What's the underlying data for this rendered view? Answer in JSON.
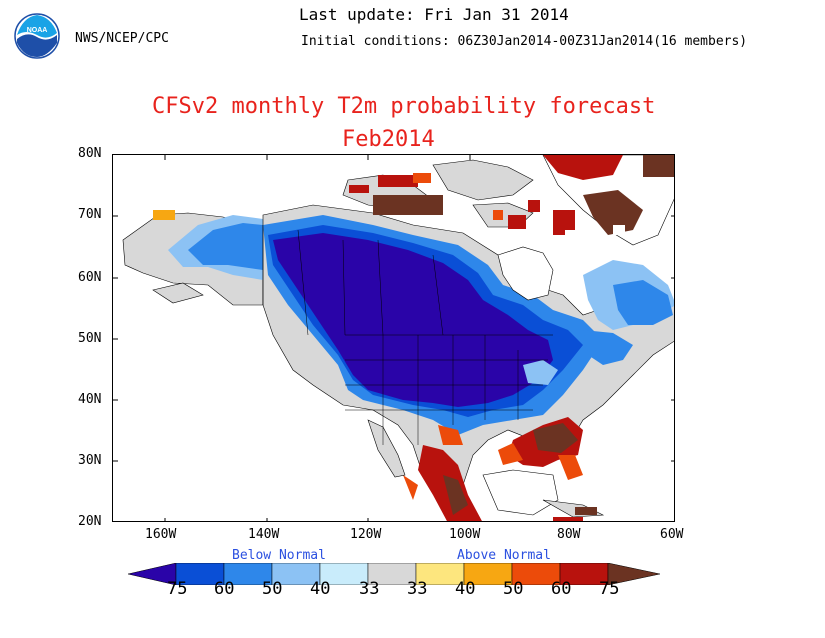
{
  "header": {
    "agency": "NWS/NCEP/CPC",
    "last_update": "Last update: Fri Jan 31 2014",
    "initial_conditions": "Initial conditions: 06Z30Jan2014-00Z31Jan2014(16 members)",
    "logo_text": "NOAA"
  },
  "title": {
    "line1": "CFSv2 monthly T2m probability forecast",
    "line2": "Feb2014"
  },
  "map": {
    "lat_labels": [
      "80N",
      "70N",
      "60N",
      "50N",
      "40N",
      "30N",
      "20N"
    ],
    "lon_labels": [
      "160W",
      "140W",
      "120W",
      "100W",
      "80W",
      "60W"
    ]
  },
  "legend": {
    "below_label": "Below Normal",
    "above_label": "Above Normal",
    "values": [
      "75",
      "60",
      "50",
      "40",
      "33",
      "33",
      "40",
      "50",
      "60",
      "75"
    ],
    "colors": {
      "below_75": "#2a04a8",
      "below_60": "#0a4fd6",
      "below_50": "#2e87ea",
      "below_40": "#8cc2f4",
      "below_33": "#c9ecfb",
      "normal": "#d8d8d8",
      "above_33": "#fde67e",
      "above_40": "#f7a712",
      "above_50": "#ec4b0a",
      "above_60": "#b8120d",
      "above_75": "#6b3322"
    }
  }
}
